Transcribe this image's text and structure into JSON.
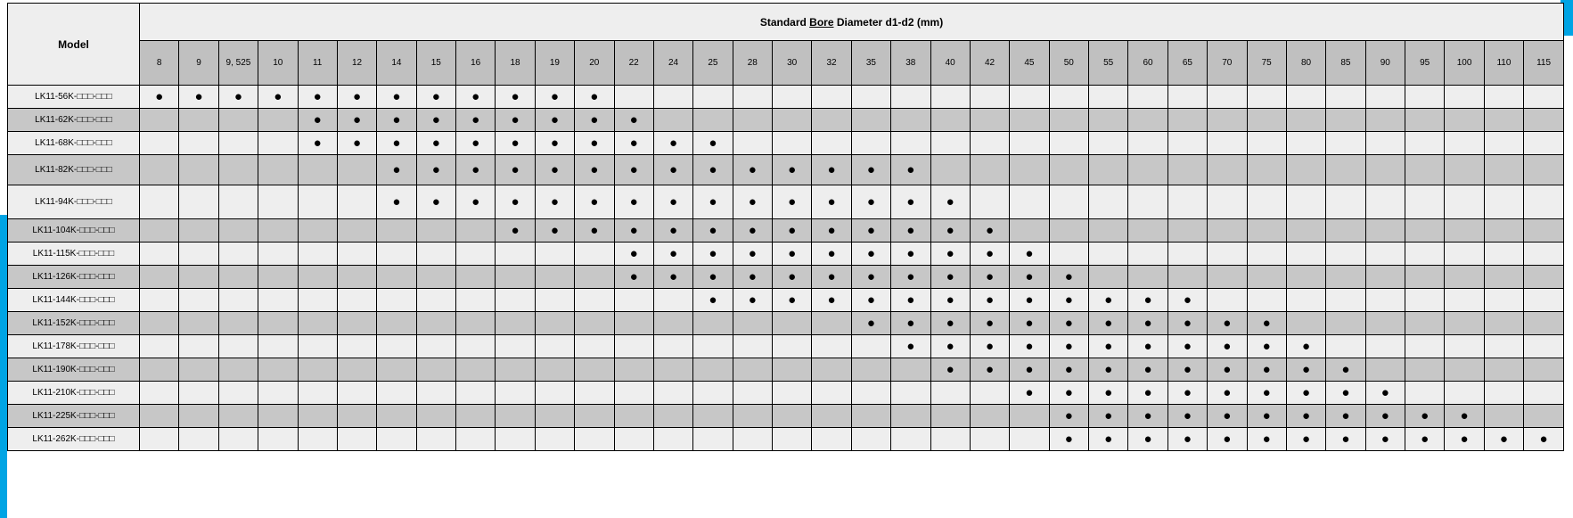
{
  "accent_color": "#00a4e4",
  "border_color": "#000000",
  "header_bg": "#eeeeee",
  "subheader_bg": "#c0c0c0",
  "row_even_bg": "#eeeeee",
  "row_odd_bg": "#c7c7c7",
  "dot_glyph": "●",
  "box_glyph": "□□□-□□□",
  "headers": {
    "model": "Model",
    "span_pre": "Standard ",
    "span_u": "Bore",
    "span_post": " Diameter d1-d2 (mm)"
  },
  "diameters": [
    "8",
    "9",
    "9, 525",
    "10",
    "11",
    "12",
    "14",
    "15",
    "16",
    "18",
    "19",
    "20",
    "22",
    "24",
    "25",
    "28",
    "30",
    "32",
    "35",
    "38",
    "40",
    "42",
    "45",
    "50",
    "55",
    "60",
    "65",
    "70",
    "75",
    "80",
    "85",
    "90",
    "95",
    "100",
    "110",
    "115"
  ],
  "rows": [
    {
      "model": "LK11-56K-",
      "dots": [
        1,
        1,
        1,
        1,
        1,
        1,
        1,
        1,
        1,
        1,
        1,
        1,
        0,
        0,
        0,
        0,
        0,
        0,
        0,
        0,
        0,
        0,
        0,
        0,
        0,
        0,
        0,
        0,
        0,
        0,
        0,
        0,
        0,
        0,
        0,
        0
      ]
    },
    {
      "model": "LK11-62K-",
      "dots": [
        0,
        0,
        0,
        0,
        1,
        1,
        1,
        1,
        1,
        1,
        1,
        1,
        1,
        0,
        0,
        0,
        0,
        0,
        0,
        0,
        0,
        0,
        0,
        0,
        0,
        0,
        0,
        0,
        0,
        0,
        0,
        0,
        0,
        0,
        0,
        0
      ]
    },
    {
      "model": "LK11-68K-",
      "dots": [
        0,
        0,
        0,
        0,
        1,
        1,
        1,
        1,
        1,
        1,
        1,
        1,
        1,
        1,
        1,
        0,
        0,
        0,
        0,
        0,
        0,
        0,
        0,
        0,
        0,
        0,
        0,
        0,
        0,
        0,
        0,
        0,
        0,
        0,
        0,
        0
      ]
    },
    {
      "model": "LK11-82K-",
      "dots": [
        0,
        0,
        0,
        0,
        0,
        0,
        1,
        1,
        1,
        1,
        1,
        1,
        1,
        1,
        1,
        1,
        1,
        1,
        1,
        1,
        0,
        0,
        0,
        0,
        0,
        0,
        0,
        0,
        0,
        0,
        0,
        0,
        0,
        0,
        0,
        0
      ],
      "tall": true
    },
    {
      "model": "LK11-94K-",
      "dots": [
        0,
        0,
        0,
        0,
        0,
        0,
        1,
        1,
        1,
        1,
        1,
        1,
        1,
        1,
        1,
        1,
        1,
        1,
        1,
        1,
        1,
        0,
        0,
        0,
        0,
        0,
        0,
        0,
        0,
        0,
        0,
        0,
        0,
        0,
        0,
        0
      ],
      "xtall": true
    },
    {
      "model": "LK11-104K-",
      "dots": [
        0,
        0,
        0,
        0,
        0,
        0,
        0,
        0,
        0,
        1,
        1,
        1,
        1,
        1,
        1,
        1,
        1,
        1,
        1,
        1,
        1,
        1,
        0,
        0,
        0,
        0,
        0,
        0,
        0,
        0,
        0,
        0,
        0,
        0,
        0,
        0
      ]
    },
    {
      "model": "LK11-115K-",
      "dots": [
        0,
        0,
        0,
        0,
        0,
        0,
        0,
        0,
        0,
        0,
        0,
        0,
        1,
        1,
        1,
        1,
        1,
        1,
        1,
        1,
        1,
        1,
        1,
        0,
        0,
        0,
        0,
        0,
        0,
        0,
        0,
        0,
        0,
        0,
        0,
        0
      ]
    },
    {
      "model": "LK11-126K-",
      "dots": [
        0,
        0,
        0,
        0,
        0,
        0,
        0,
        0,
        0,
        0,
        0,
        0,
        1,
        1,
        1,
        1,
        1,
        1,
        1,
        1,
        1,
        1,
        1,
        1,
        0,
        0,
        0,
        0,
        0,
        0,
        0,
        0,
        0,
        0,
        0,
        0
      ]
    },
    {
      "model": "LK11-144K-",
      "dots": [
        0,
        0,
        0,
        0,
        0,
        0,
        0,
        0,
        0,
        0,
        0,
        0,
        0,
        0,
        1,
        1,
        1,
        1,
        1,
        1,
        1,
        1,
        1,
        1,
        1,
        1,
        1,
        0,
        0,
        0,
        0,
        0,
        0,
        0,
        0,
        0
      ]
    },
    {
      "model": "LK11-152K-",
      "dots": [
        0,
        0,
        0,
        0,
        0,
        0,
        0,
        0,
        0,
        0,
        0,
        0,
        0,
        0,
        0,
        0,
        0,
        0,
        1,
        1,
        1,
        1,
        1,
        1,
        1,
        1,
        1,
        1,
        1,
        0,
        0,
        0,
        0,
        0,
        0,
        0
      ]
    },
    {
      "model": "LK11-178K-",
      "dots": [
        0,
        0,
        0,
        0,
        0,
        0,
        0,
        0,
        0,
        0,
        0,
        0,
        0,
        0,
        0,
        0,
        0,
        0,
        0,
        1,
        1,
        1,
        1,
        1,
        1,
        1,
        1,
        1,
        1,
        1,
        0,
        0,
        0,
        0,
        0,
        0
      ]
    },
    {
      "model": "LK11-190K-",
      "dots": [
        0,
        0,
        0,
        0,
        0,
        0,
        0,
        0,
        0,
        0,
        0,
        0,
        0,
        0,
        0,
        0,
        0,
        0,
        0,
        0,
        1,
        1,
        1,
        1,
        1,
        1,
        1,
        1,
        1,
        1,
        1,
        0,
        0,
        0,
        0,
        0
      ]
    },
    {
      "model": "LK11-210K-",
      "dots": [
        0,
        0,
        0,
        0,
        0,
        0,
        0,
        0,
        0,
        0,
        0,
        0,
        0,
        0,
        0,
        0,
        0,
        0,
        0,
        0,
        0,
        0,
        1,
        1,
        1,
        1,
        1,
        1,
        1,
        1,
        1,
        1,
        0,
        0,
        0,
        0
      ]
    },
    {
      "model": "LK11-225K-",
      "dots": [
        0,
        0,
        0,
        0,
        0,
        0,
        0,
        0,
        0,
        0,
        0,
        0,
        0,
        0,
        0,
        0,
        0,
        0,
        0,
        0,
        0,
        0,
        0,
        1,
        1,
        1,
        1,
        1,
        1,
        1,
        1,
        1,
        1,
        1,
        0,
        0
      ]
    },
    {
      "model": "LK11-262K-",
      "dots": [
        0,
        0,
        0,
        0,
        0,
        0,
        0,
        0,
        0,
        0,
        0,
        0,
        0,
        0,
        0,
        0,
        0,
        0,
        0,
        0,
        0,
        0,
        0,
        1,
        1,
        1,
        1,
        1,
        1,
        1,
        1,
        1,
        1,
        1,
        1,
        1
      ]
    }
  ]
}
